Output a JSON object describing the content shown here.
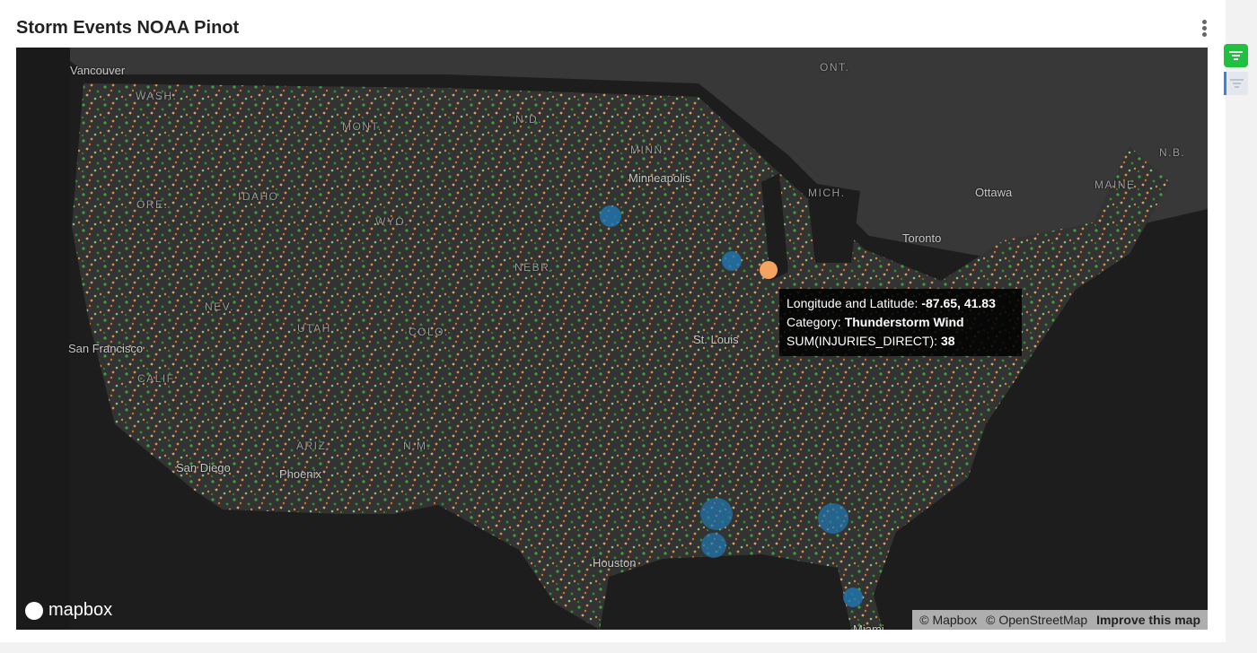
{
  "header": {
    "title": "Storm Events NOAA Pinot"
  },
  "map": {
    "labels": [
      "Vancouver",
      "WASH.",
      "ORE.",
      "IDAHO",
      "MONT.",
      "WYO.",
      "NEV.",
      "UTAH",
      "COLO.",
      "San Francisco",
      "CALIF.",
      "San Diego",
      "Phoenix",
      "ARIZ.",
      "N.M.",
      "N.D.",
      "MINN.",
      "Minneapolis",
      "NEBR.",
      "St. Louis",
      "MICH.",
      "Ottawa",
      "Toronto",
      "ONT.",
      "MAINE",
      "N.B.",
      "Houston",
      "Miami"
    ],
    "tooltip": {
      "lines": [
        {
          "label": "Longitude and Latitude:",
          "value": "-87.65, 41.83"
        },
        {
          "label": "Category:",
          "value": "Thunderstorm Wind"
        },
        {
          "label": "SUM(INJURIES_DIRECT):",
          "value": "38"
        }
      ]
    },
    "logo": "mapbox",
    "attribution": [
      "© Mapbox",
      "© OpenStreetMap",
      "Improve this map"
    ]
  }
}
